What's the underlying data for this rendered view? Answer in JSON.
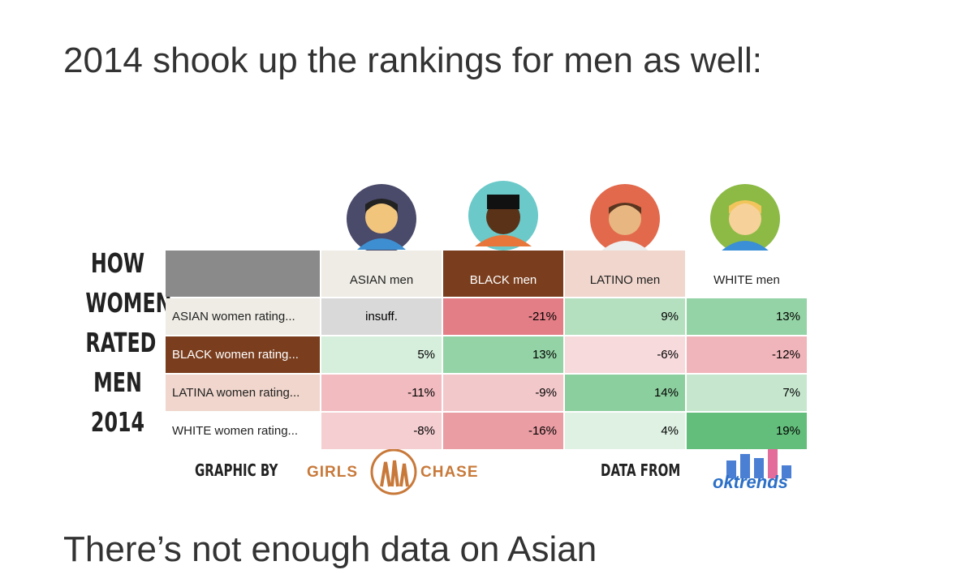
{
  "intro": "2014 shook up the rankings for men as well:",
  "outro": "There’s not enough data on Asian",
  "infographic": {
    "side_title": [
      "HOW",
      "WOMEN",
      "RATED",
      "MEN",
      "2014"
    ],
    "columns": [
      "ASIAN men",
      "BLACK men",
      "LATINO men",
      "WHITE men"
    ],
    "rows": [
      {
        "label": "ASIAN women rating...",
        "cells": [
          "insuff.",
          "-21%",
          "9%",
          "13%"
        ]
      },
      {
        "label": "BLACK women rating...",
        "cells": [
          "5%",
          "13%",
          "-6%",
          "-12%"
        ]
      },
      {
        "label": "LATINA women rating...",
        "cells": [
          "-11%",
          "-9%",
          "14%",
          "7%"
        ]
      },
      {
        "label": "WHITE women rating...",
        "cells": [
          "-8%",
          "-16%",
          "4%",
          "19%"
        ]
      }
    ],
    "footer": {
      "graphic_by": "GRAPHIC BY",
      "logo_left": "GIRLS",
      "logo_right": "CHASE",
      "data_from": "DATA FROM",
      "data_logo": "oktrends"
    }
  }
}
